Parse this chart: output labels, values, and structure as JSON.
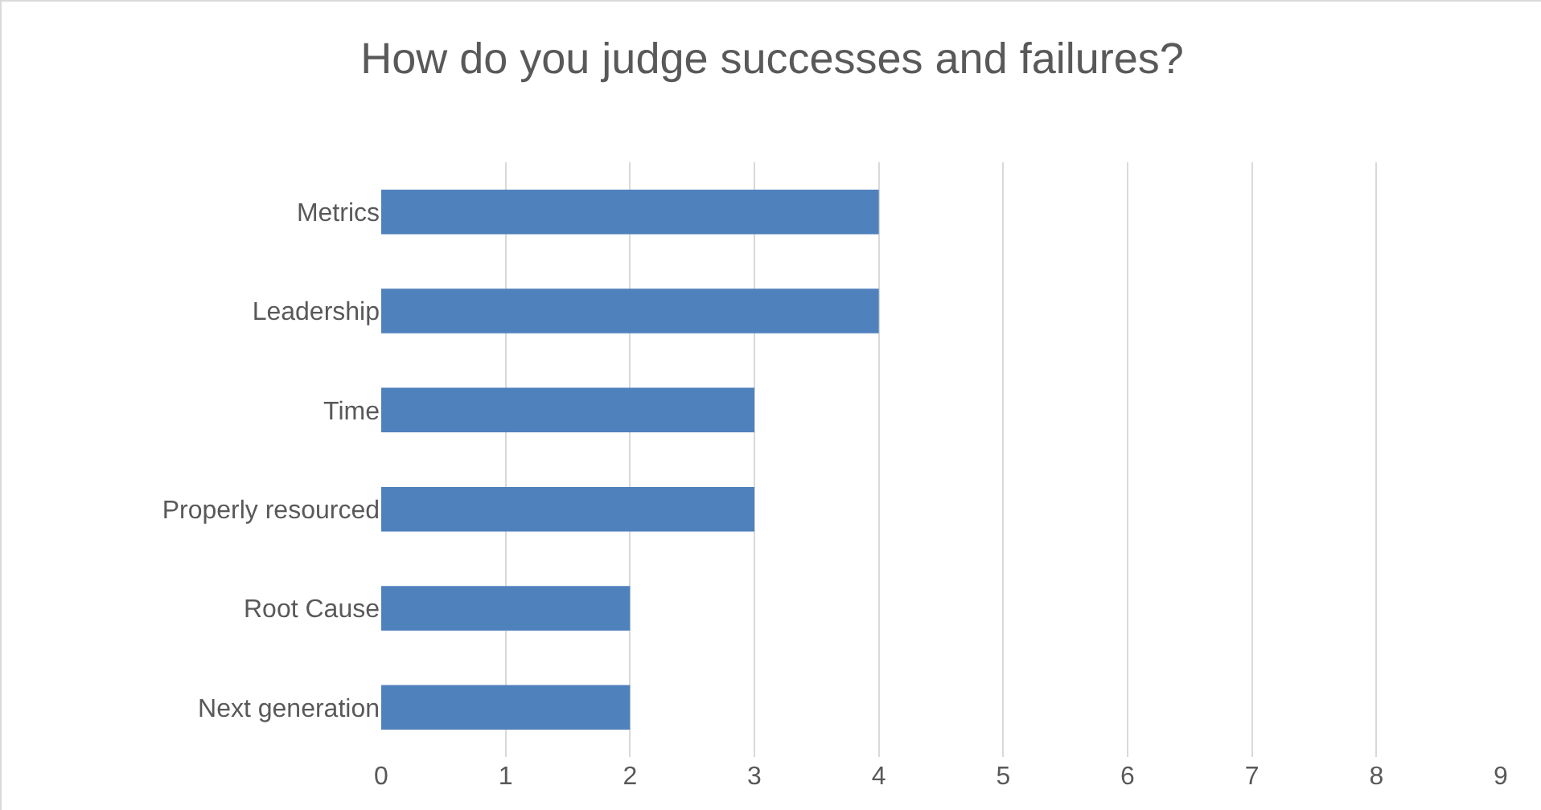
{
  "chart_data": {
    "type": "bar",
    "orientation": "horizontal",
    "title": "How do you judge successes and failures?",
    "categories": [
      "Metrics",
      "Leadership",
      "Time",
      "Properly resourced",
      "Root Cause",
      "Next generation"
    ],
    "values": [
      4,
      4,
      3,
      3,
      2,
      2
    ],
    "color": "#4f81bd",
    "xlim": [
      0,
      9
    ],
    "xticks": [
      0,
      1,
      2,
      3,
      4,
      5,
      6,
      7,
      8,
      9
    ],
    "grid": "x"
  }
}
